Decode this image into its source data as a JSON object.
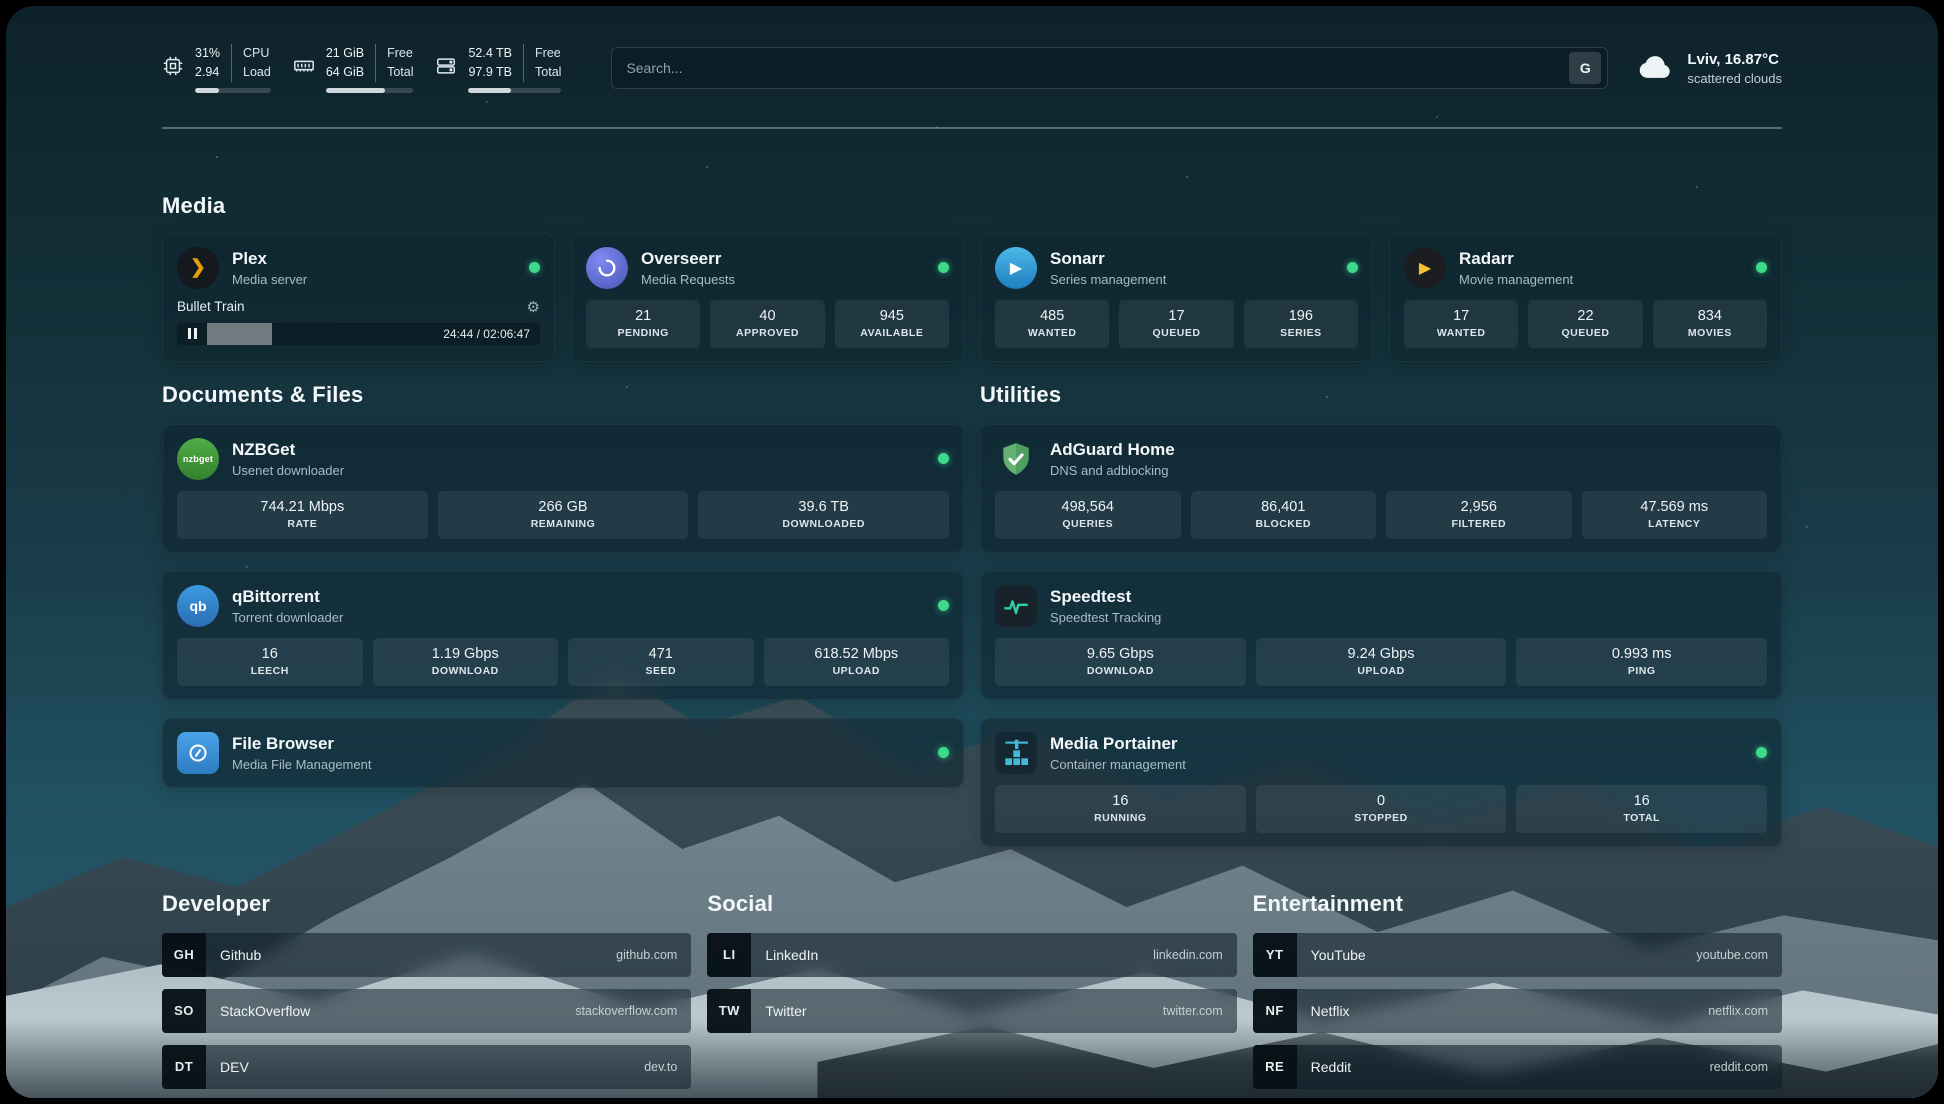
{
  "topbar": {
    "cpu": {
      "value_top": "31%",
      "value_bottom": "2.94",
      "label_top": "CPU",
      "label_bottom": "Load",
      "progress_percent": 31
    },
    "ram": {
      "value_top": "21 GiB",
      "value_bottom": "64 GiB",
      "label_top": "Free",
      "label_bottom": "Total",
      "progress_percent": 67
    },
    "disk": {
      "value_top": "52.4 TB",
      "value_bottom": "97.9 TB",
      "label_top": "Free",
      "label_bottom": "Total",
      "progress_percent": 46
    },
    "search": {
      "placeholder": "Search...",
      "button_label": "G"
    },
    "weather": {
      "location": "Lviv, 16.87°C",
      "condition": "scattered clouds"
    }
  },
  "sections": {
    "media": "Media",
    "documents": "Documents & Files",
    "utilities": "Utilities",
    "developer": "Developer",
    "social": "Social",
    "entertainment": "Entertainment"
  },
  "apps": {
    "plex": {
      "title": "Plex",
      "subtitle": "Media server",
      "now_playing": "Bullet Train",
      "time": "24:44 / 02:06:47",
      "progress_percent": 19.5
    },
    "overseerr": {
      "title": "Overseerr",
      "subtitle": "Media Requests",
      "stats": [
        {
          "value": "21",
          "label": "PENDING"
        },
        {
          "value": "40",
          "label": "APPROVED"
        },
        {
          "value": "945",
          "label": "AVAILABLE"
        }
      ]
    },
    "sonarr": {
      "title": "Sonarr",
      "subtitle": "Series management",
      "stats": [
        {
          "value": "485",
          "label": "WANTED"
        },
        {
          "value": "17",
          "label": "QUEUED"
        },
        {
          "value": "196",
          "label": "SERIES"
        }
      ]
    },
    "radarr": {
      "title": "Radarr",
      "subtitle": "Movie management",
      "stats": [
        {
          "value": "17",
          "label": "WANTED"
        },
        {
          "value": "22",
          "label": "QUEUED"
        },
        {
          "value": "834",
          "label": "MOVIES"
        }
      ]
    },
    "nzbget": {
      "title": "NZBGet",
      "subtitle": "Usenet downloader",
      "icon_text": "nzbget",
      "stats": [
        {
          "value": "744.21 Mbps",
          "label": "RATE"
        },
        {
          "value": "266 GB",
          "label": "REMAINING"
        },
        {
          "value": "39.6 TB",
          "label": "DOWNLOADED"
        }
      ]
    },
    "qbittorrent": {
      "title": "qBittorrent",
      "subtitle": "Torrent downloader",
      "icon_text": "qb",
      "stats": [
        {
          "value": "16",
          "label": "LEECH"
        },
        {
          "value": "1.19 Gbps",
          "label": "DOWNLOAD"
        },
        {
          "value": "471",
          "label": "SEED"
        },
        {
          "value": "618.52 Mbps",
          "label": "UPLOAD"
        }
      ]
    },
    "filebrowser": {
      "title": "File Browser",
      "subtitle": "Media File Management"
    },
    "adguard": {
      "title": "AdGuard Home",
      "subtitle": "DNS and adblocking",
      "stats": [
        {
          "value": "498,564",
          "label": "QUERIES"
        },
        {
          "value": "86,401",
          "label": "BLOCKED"
        },
        {
          "value": "2,956",
          "label": "FILTERED"
        },
        {
          "value": "47.569 ms",
          "label": "LATENCY"
        }
      ]
    },
    "speedtest": {
      "title": "Speedtest",
      "subtitle": "Speedtest Tracking",
      "stats": [
        {
          "value": "9.65 Gbps",
          "label": "DOWNLOAD"
        },
        {
          "value": "9.24 Gbps",
          "label": "UPLOAD"
        },
        {
          "value": "0.993 ms",
          "label": "PING"
        }
      ]
    },
    "portainer": {
      "title": "Media Portainer",
      "subtitle": "Container management",
      "stats": [
        {
          "value": "16",
          "label": "RUNNING"
        },
        {
          "value": "0",
          "label": "STOPPED"
        },
        {
          "value": "16",
          "label": "TOTAL"
        }
      ]
    }
  },
  "bookmarks": {
    "developer": [
      {
        "abbr": "GH",
        "name": "Github",
        "url": "github.com"
      },
      {
        "abbr": "SO",
        "name": "StackOverflow",
        "url": "stackoverflow.com"
      },
      {
        "abbr": "DT",
        "name": "DEV",
        "url": "dev.to"
      }
    ],
    "social": [
      {
        "abbr": "LI",
        "name": "LinkedIn",
        "url": "linkedin.com"
      },
      {
        "abbr": "TW",
        "name": "Twitter",
        "url": "twitter.com"
      }
    ],
    "entertainment": [
      {
        "abbr": "YT",
        "name": "YouTube",
        "url": "youtube.com"
      },
      {
        "abbr": "NF",
        "name": "Netflix",
        "url": "netflix.com"
      },
      {
        "abbr": "RE",
        "name": "Reddit",
        "url": "reddit.com"
      }
    ]
  },
  "icons": {
    "plex_chevron": "❯",
    "gear": "⚙",
    "sonarr_play": "▶",
    "radarr_play": "▶"
  },
  "colors": {
    "status_online": "#3fd98a",
    "plex_accent": "#e5a00d",
    "background_teal": "#16323d"
  }
}
